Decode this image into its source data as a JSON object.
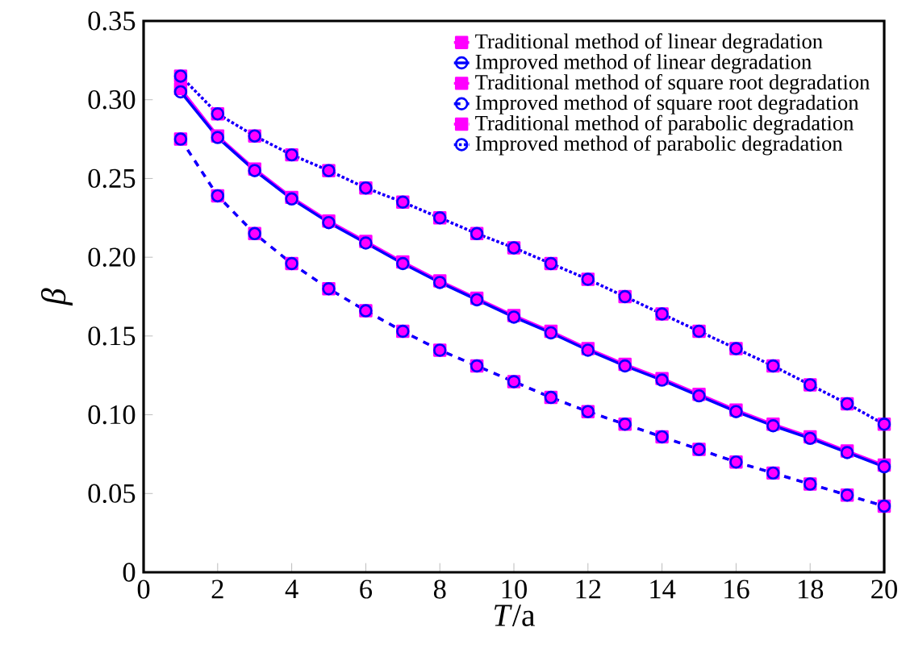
{
  "chart_data": {
    "type": "line",
    "xlabel": "*T*/a",
    "ylabel": "β",
    "x": [
      1,
      2,
      3,
      4,
      5,
      6,
      7,
      8,
      9,
      10,
      11,
      12,
      13,
      14,
      15,
      16,
      17,
      18,
      19,
      20
    ],
    "xlim": [
      0,
      20
    ],
    "xticks": [
      0,
      2,
      4,
      6,
      8,
      10,
      12,
      14,
      16,
      18,
      20
    ],
    "ylim": [
      0,
      0.35
    ],
    "yticks": [
      0,
      {
        "value": 0.05,
        "label": "0.05"
      },
      {
        "value": 0.1,
        "label": "0.10"
      },
      {
        "value": 0.15,
        "label": "0.15"
      },
      {
        "value": 0.2,
        "label": "0.20"
      },
      {
        "value": 0.25,
        "label": "0.25"
      },
      {
        "value": 0.3,
        "label": "0.30"
      },
      {
        "value": 0.35,
        "label": "0.35"
      }
    ],
    "legend": "top right",
    "grid": false,
    "series": [
      {
        "name": "Traditional method of linear degradation",
        "color": "#ff00ff",
        "marker": "square",
        "line_style": "solid",
        "values": [
          0.307,
          0.277,
          0.256,
          0.238,
          0.223,
          0.21,
          0.197,
          0.185,
          0.174,
          0.163,
          0.153,
          0.142,
          0.132,
          0.123,
          0.113,
          0.103,
          0.094,
          0.086,
          0.077,
          0.068
        ]
      },
      {
        "name": "Improved method of linear degradation",
        "color": "#0000ff",
        "marker": "circle",
        "line_style": "solid",
        "values": [
          0.305,
          0.276,
          0.255,
          0.237,
          0.222,
          0.209,
          0.196,
          0.184,
          0.173,
          0.162,
          0.152,
          0.141,
          0.131,
          0.122,
          0.112,
          0.102,
          0.093,
          0.085,
          0.076,
          0.067
        ]
      },
      {
        "name": "Traditional method of square root degradation",
        "color": "#ff00ff",
        "marker": "square",
        "line_style": "dashed",
        "values": [
          0.275,
          0.239,
          0.215,
          0.196,
          0.18,
          0.166,
          0.153,
          0.141,
          0.131,
          0.121,
          0.111,
          0.102,
          0.094,
          0.086,
          0.078,
          0.07,
          0.063,
          0.056,
          0.049,
          0.042
        ]
      },
      {
        "name": "Improved method of square root degradation",
        "color": "#0000ff",
        "marker": "circle",
        "line_style": "dashed",
        "values": [
          0.275,
          0.239,
          0.215,
          0.196,
          0.18,
          0.166,
          0.153,
          0.141,
          0.131,
          0.121,
          0.111,
          0.102,
          0.094,
          0.086,
          0.078,
          0.07,
          0.063,
          0.056,
          0.049,
          0.042
        ]
      },
      {
        "name": "Traditional method of parabolic degradation",
        "color": "#ff00ff",
        "marker": "square",
        "line_style": "dotted",
        "values": [
          0.315,
          0.291,
          0.277,
          0.265,
          0.255,
          0.244,
          0.235,
          0.225,
          0.215,
          0.206,
          0.196,
          0.186,
          0.175,
          0.164,
          0.153,
          0.142,
          0.131,
          0.119,
          0.107,
          0.094
        ]
      },
      {
        "name": "Improved method of parabolic degradation",
        "color": "#0000ff",
        "marker": "circle",
        "line_style": "dotted",
        "values": [
          0.315,
          0.291,
          0.277,
          0.265,
          0.255,
          0.244,
          0.235,
          0.225,
          0.215,
          0.206,
          0.196,
          0.186,
          0.175,
          0.164,
          0.153,
          0.142,
          0.131,
          0.119,
          0.107,
          0.094
        ]
      }
    ]
  }
}
